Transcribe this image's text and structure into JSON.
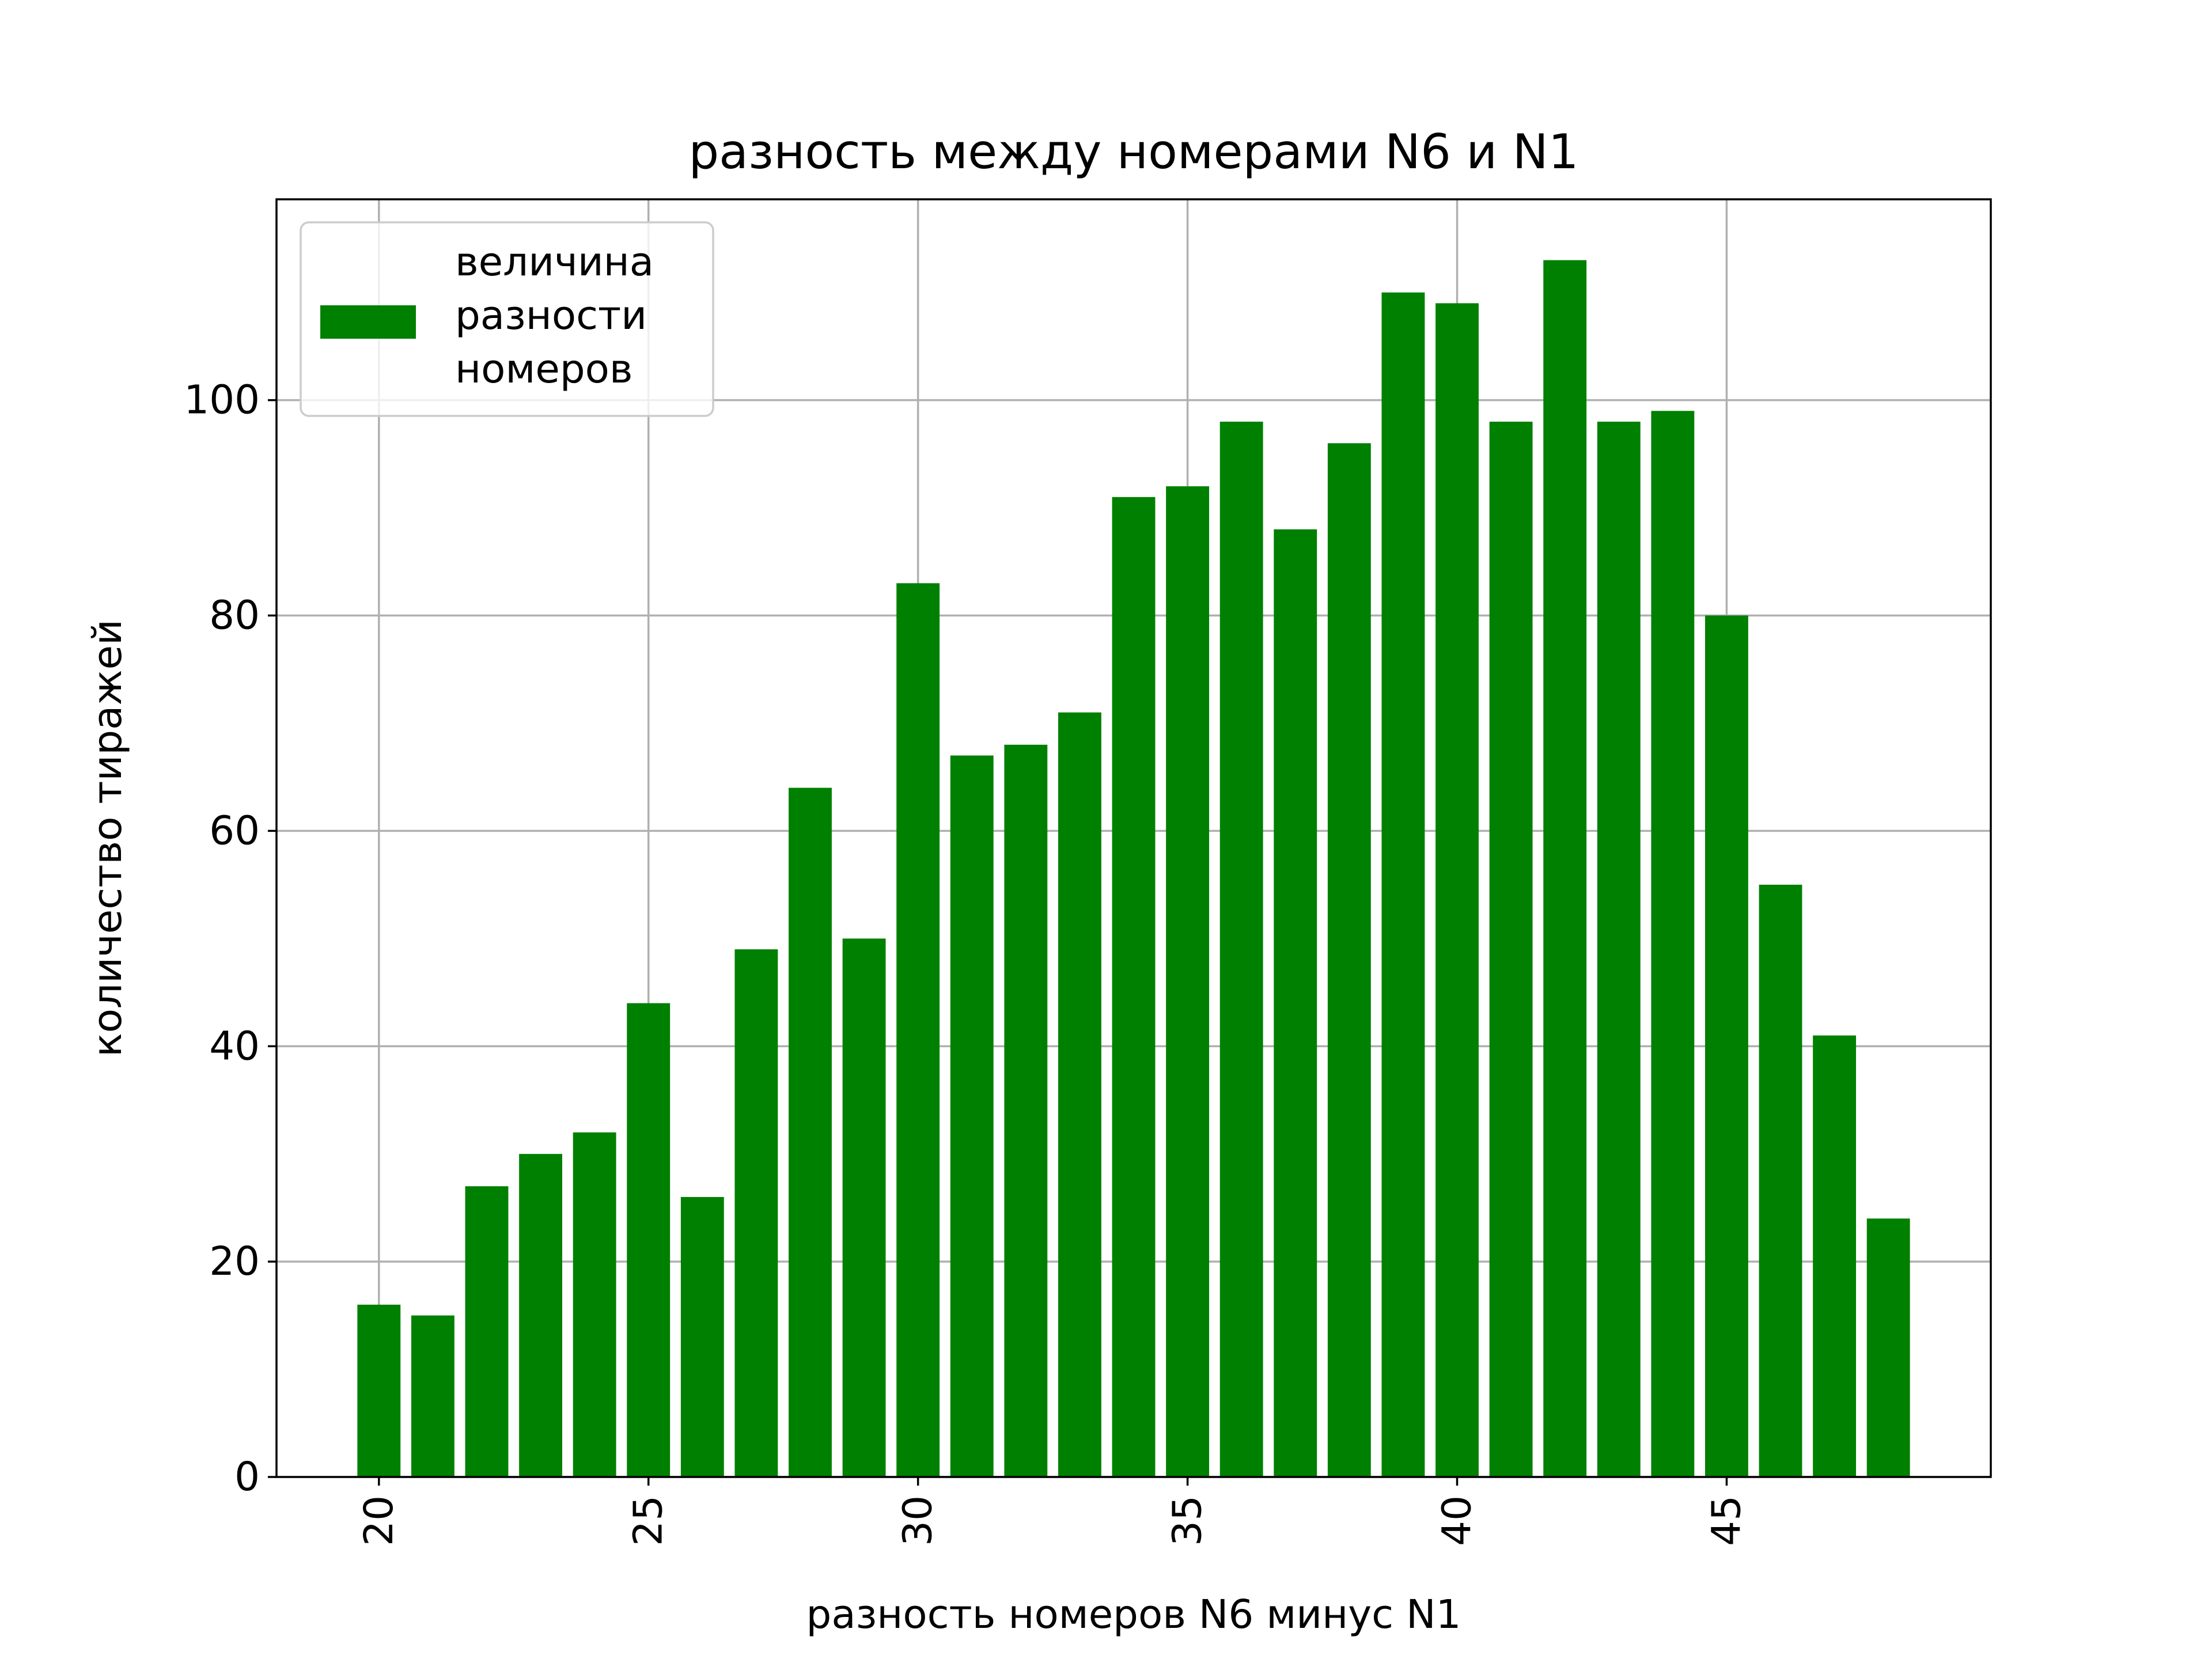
{
  "chart_data": {
    "type": "bar",
    "title": "разность между номерами N6 и N1",
    "xlabel": "разность номеров N6 минус N1",
    "ylabel": "количество тиражей",
    "x": [
      20,
      21,
      22,
      23,
      24,
      25,
      26,
      27,
      28,
      29,
      30,
      31,
      32,
      33,
      34,
      35,
      36,
      37,
      38,
      39,
      40,
      41,
      42,
      43,
      44,
      45,
      46,
      47,
      48
    ],
    "values": [
      16,
      15,
      27,
      30,
      32,
      44,
      26,
      49,
      64,
      50,
      83,
      67,
      68,
      71,
      91,
      92,
      98,
      88,
      96,
      110,
      109,
      98,
      113,
      98,
      99,
      80,
      55,
      41,
      24
    ],
    "series_name_lines": [
      "величина",
      "разности",
      "номеров"
    ],
    "color": "#008000",
    "xlim": [
      18.1,
      49.9
    ],
    "ylim": [
      0,
      118.65
    ],
    "x_ticks": [
      "20",
      "25",
      "30",
      "35",
      "40",
      "45"
    ],
    "y_ticks": [
      "0",
      "20",
      "40",
      "60",
      "80",
      "100"
    ],
    "x_tick_rotation": "vertical",
    "grid": true,
    "legend_position": "upper-left"
  }
}
